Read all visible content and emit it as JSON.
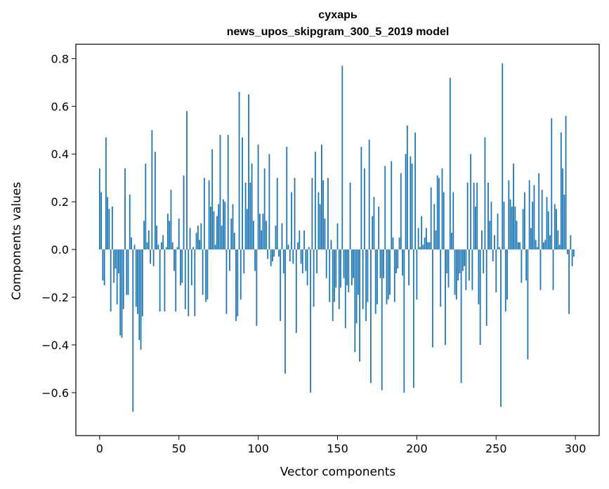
{
  "chart_data": {
    "type": "bar",
    "title": "сухарь",
    "subtitle": "news_upos_skipgram_300_5_2019 model",
    "xlabel": "Vector components",
    "ylabel": "Components values",
    "xlim": [
      -15,
      315
    ],
    "ylim": [
      -0.78,
      0.86
    ],
    "x_ticks": [
      0,
      50,
      100,
      150,
      200,
      250,
      300
    ],
    "x_tick_labels": [
      "0",
      "50",
      "100",
      "150",
      "200",
      "250",
      "300"
    ],
    "y_ticks": [
      0.8,
      0.6,
      0.4,
      0.2,
      0.0,
      -0.2,
      -0.4,
      -0.6
    ],
    "y_tick_labels": [
      "0.8",
      "0.6",
      "0.4",
      "0.2",
      "0.0",
      "−0.2",
      "−0.4",
      "−0.6"
    ],
    "bar_color": "#1f77b4",
    "grid": false,
    "values": [
      0.34,
      0.24,
      -0.13,
      -0.15,
      0.47,
      0.22,
      0.17,
      -0.26,
      0.18,
      -0.14,
      -0.08,
      -0.23,
      -0.1,
      -0.36,
      -0.37,
      -0.25,
      0.34,
      -0.19,
      -0.19,
      0.23,
      0.05,
      -0.68,
      0.02,
      -0.24,
      -0.27,
      -0.38,
      -0.42,
      -0.28,
      0.12,
      0.36,
      0.03,
      0.08,
      -0.06,
      0.5,
      -0.07,
      0.41,
      0.1,
      0.02,
      -0.26,
      0.03,
      0.06,
      -0.26,
      0.01,
      0.15,
      0.12,
      0.25,
      0.03,
      -0.09,
      -0.26,
      0.01,
      0.13,
      -0.15,
      -0.14,
      0.31,
      -0.25,
      0.58,
      -0.28,
      0.09,
      -0.15,
      0.01,
      -0.28,
      0.07,
      0.1,
      0.04,
      0.11,
      -0.19,
      0.3,
      -0.22,
      -0.21,
      0.29,
      0.18,
      0.42,
      0.16,
      0.02,
      0.14,
      0.19,
      0.48,
      0.1,
      0.21,
      0.2,
      -0.27,
      0.48,
      -0.09,
      0.13,
      0.19,
      0.07,
      -0.3,
      -0.28,
      0.66,
      -0.21,
      0.47,
      -0.1,
      0.28,
      0.17,
      0.65,
      0.28,
      0.36,
      0.12,
      -0.09,
      -0.32,
      0.44,
      0.15,
      0.08,
      0.15,
      0.34,
      0.12,
      -0.04,
      0.4,
      -0.07,
      -0.05,
      -0.03,
      0.1,
      0.3,
      -0.03,
      -0.3,
      0.11,
      -0.1,
      -0.52,
      0.43,
      0.02,
      -0.05,
      0.24,
      -0.06,
      0.3,
      -0.35,
      0.03,
      0.08,
      -0.06,
      -0.1,
      0.08,
      -0.09,
      -0.15,
      0.01,
      -0.6,
      0.3,
      -0.24,
      0.41,
      -0.1,
      0.24,
      0.19,
      0.44,
      0.29,
      0.13,
      -0.12,
      0.3,
      -0.22,
      0.04,
      -0.3,
      -0.22,
      -0.16,
      0.11,
      -0.25,
      -0.16,
      0.77,
      -0.12,
      -0.33,
      -0.15,
      -0.18,
      0.28,
      -0.15,
      -0.12,
      -0.43,
      -0.31,
      -0.19,
      -0.47,
      0.43,
      -0.25,
      0.34,
      -0.3,
      -0.22,
      0.46,
      -0.56,
      0.14,
      0.22,
      -0.27,
      -0.23,
      0.18,
      -0.12,
      -0.59,
      -0.12,
      0.35,
      -0.23,
      -0.21,
      -0.19,
      0.37,
      0.05,
      -0.22,
      -0.1,
      -0.08,
      0.05,
      0.32,
      -0.11,
      -0.6,
      0.4,
      0.52,
      -0.15,
      0.39,
      0.36,
      -0.58,
      0.49,
      -0.21,
      0.09,
      0.01,
      0.14,
      0.02,
      0.05,
      0.09,
      0.03,
      0.03,
      0.26,
      -0.41,
      0.19,
      0.08,
      0.31,
      0.3,
      -0.24,
      0.34,
      0.24,
      -0.4,
      -0.1,
      -0.16,
      0.72,
      0.07,
      0.24,
      -0.19,
      -0.21,
      -0.13,
      -0.1,
      -0.56,
      -0.09,
      -0.07,
      -0.17,
      0.28,
      -0.13,
      0.4,
      -0.17,
      0.28,
      0.18,
      0.28,
      -0.23,
      -0.4,
      0.08,
      -0.1,
      0.47,
      -0.32,
      0.28,
      0.12,
      0.2,
      -0.05,
      0.06,
      -0.18,
      0.15,
      0.01,
      -0.66,
      0.78,
      0.2,
      -0.26,
      -0.21,
      0.29,
      0.21,
      0.18,
      0.36,
      0.18,
      0.12,
      0.03,
      0.03,
      -0.14,
      0.17,
      0.24,
      -0.13,
      -0.46,
      0.29,
      0.09,
      0.2,
      0.27,
      0.04,
      0.01,
      0.32,
      -0.17,
      0.25,
      0.03,
      0.04,
      0.22,
      0.16,
      0.06,
      0.55,
      -0.17,
      0.19,
      0.17,
      0.08,
      0.02,
      0.49,
      0.34,
      0.23,
      0.56,
      -0.02,
      -0.27,
      0.06,
      -0.07,
      -0.03
    ]
  }
}
